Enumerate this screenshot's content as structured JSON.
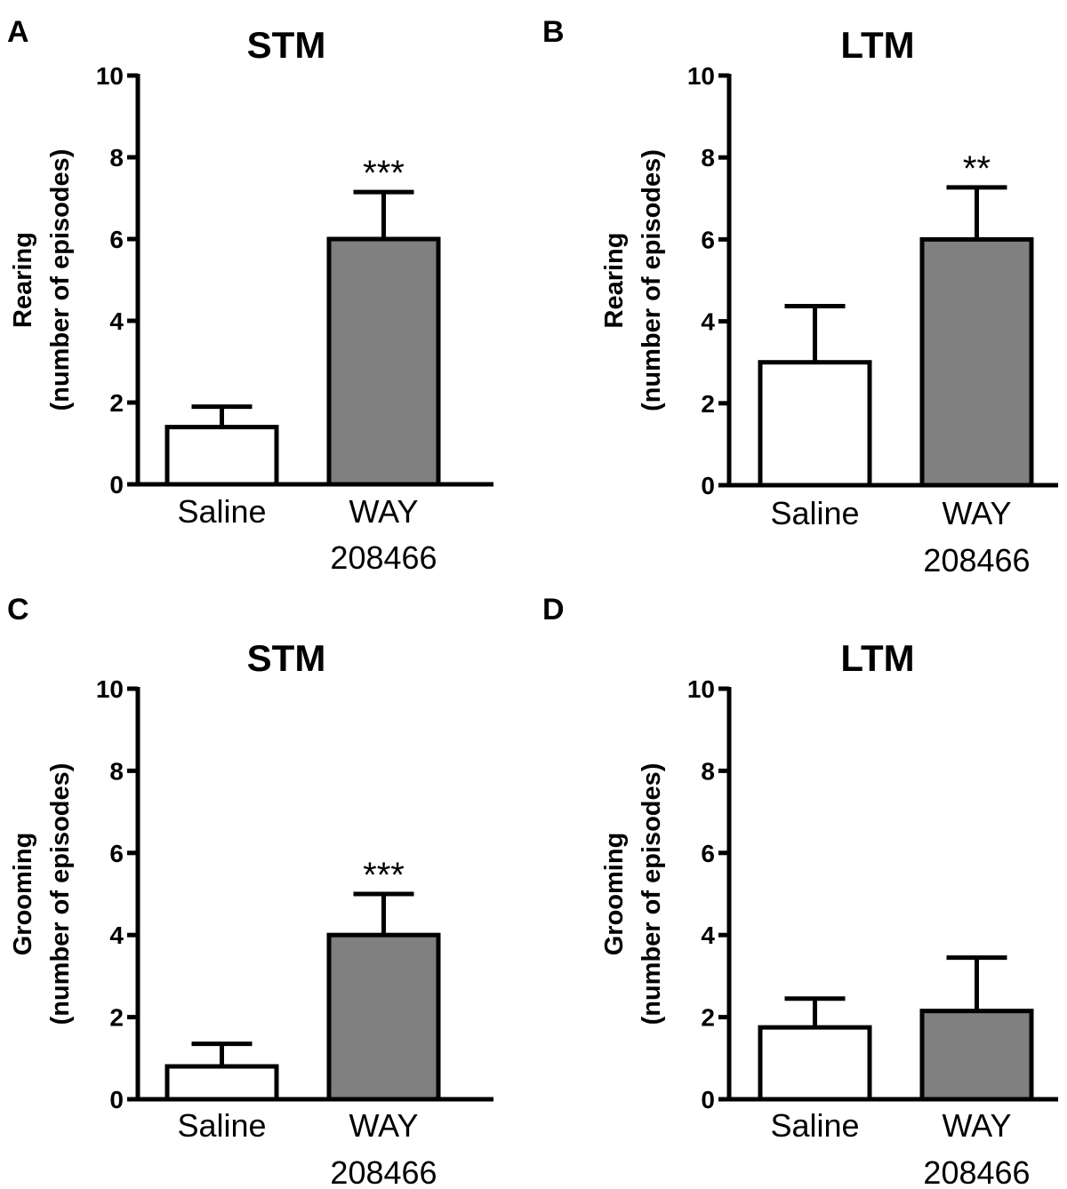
{
  "figure": {
    "colors": {
      "axis": "#000000",
      "saline_fill": "#ffffff",
      "drug_fill": "#808080"
    }
  },
  "chart_data": [
    {
      "panel": "A",
      "type": "bar",
      "title": "STM",
      "ylabel_line1": "Rearing",
      "ylabel_line2": "(number of episodes)",
      "ylim": [
        0,
        10
      ],
      "yticks": [
        "0",
        "2",
        "4",
        "6",
        "8",
        "10"
      ],
      "categories": [
        {
          "line1": "Saline",
          "line2": ""
        },
        {
          "line1": "WAY",
          "line2": "208466"
        }
      ],
      "values": [
        1.4,
        6.0
      ],
      "errors": [
        0.5,
        1.15
      ],
      "significance": [
        "",
        "***"
      ]
    },
    {
      "panel": "B",
      "type": "bar",
      "title": "LTM",
      "ylabel_line1": "Rearing",
      "ylabel_line2": "(number of episodes)",
      "ylim": [
        0,
        10
      ],
      "yticks": [
        "0",
        "2",
        "4",
        "6",
        "8",
        "10"
      ],
      "categories": [
        {
          "line1": "Saline",
          "line2": ""
        },
        {
          "line1": "WAY",
          "line2": "208466"
        }
      ],
      "values": [
        3.0,
        6.0
      ],
      "errors": [
        1.37,
        1.27
      ],
      "significance": [
        "",
        "**"
      ]
    },
    {
      "panel": "C",
      "type": "bar",
      "title": "STM",
      "ylabel_line1": "Grooming",
      "ylabel_line2": "(number of episodes)",
      "ylim": [
        0,
        10
      ],
      "yticks": [
        "0",
        "2",
        "4",
        "6",
        "8",
        "10"
      ],
      "categories": [
        {
          "line1": "Saline",
          "line2": ""
        },
        {
          "line1": "WAY",
          "line2": "208466"
        }
      ],
      "values": [
        0.8,
        4.0
      ],
      "errors": [
        0.55,
        1.0
      ],
      "significance": [
        "",
        "***"
      ]
    },
    {
      "panel": "D",
      "type": "bar",
      "title": "LTM",
      "ylabel_line1": "Grooming",
      "ylabel_line2": "(number of episodes)",
      "ylim": [
        0,
        10
      ],
      "yticks": [
        "0",
        "2",
        "4",
        "6",
        "8",
        "10"
      ],
      "categories": [
        {
          "line1": "Saline",
          "line2": ""
        },
        {
          "line1": "WAY",
          "line2": "208466"
        }
      ],
      "values": [
        1.75,
        2.15
      ],
      "errors": [
        0.7,
        1.3
      ],
      "significance": [
        "",
        ""
      ]
    }
  ]
}
